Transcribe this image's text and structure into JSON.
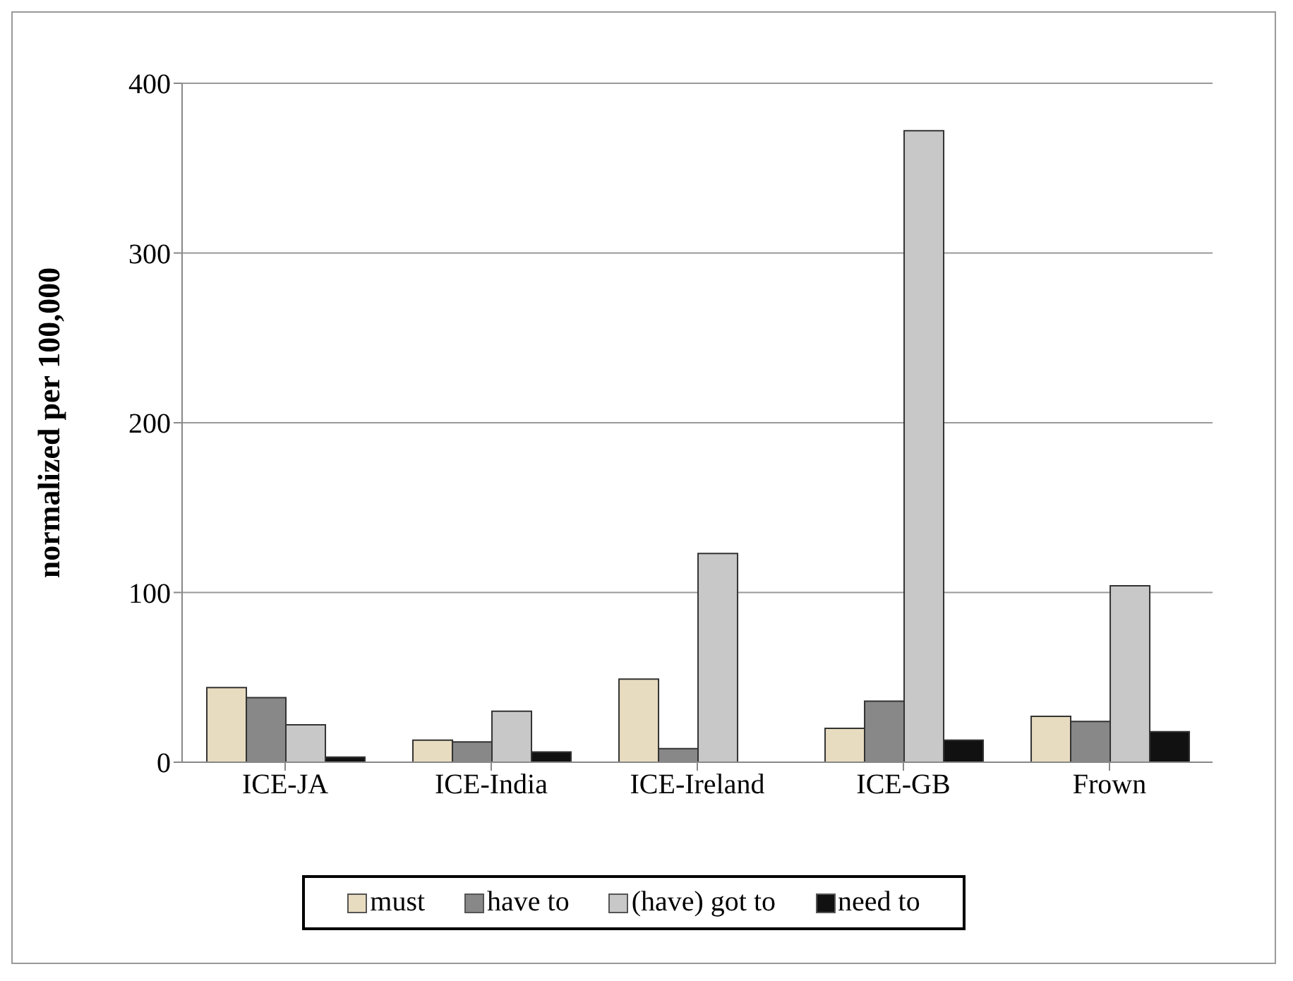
{
  "chart_data": {
    "type": "bar",
    "ylabel": "normalized per 100,000",
    "categories": [
      "ICE-JA",
      "ICE-India",
      "ICE-Ireland",
      "ICE-GB",
      "Frown"
    ],
    "series": [
      {
        "name": "must",
        "color": "#e8dcc0",
        "values": [
          44,
          13,
          49,
          20,
          27
        ]
      },
      {
        "name": "have to",
        "color": "#888888",
        "values": [
          38,
          12,
          8,
          36,
          24
        ]
      },
      {
        "name": "(have) got to",
        "color": "#c8c8c8",
        "values": [
          22,
          30,
          123,
          372,
          104
        ]
      },
      {
        "name": "need to",
        "color": "#111111",
        "values": [
          3,
          6,
          0,
          13,
          18
        ]
      }
    ],
    "ylim": [
      0,
      400
    ],
    "yticks": [
      0,
      100,
      200,
      300,
      400
    ],
    "grid": "y",
    "legend": "bottom"
  }
}
